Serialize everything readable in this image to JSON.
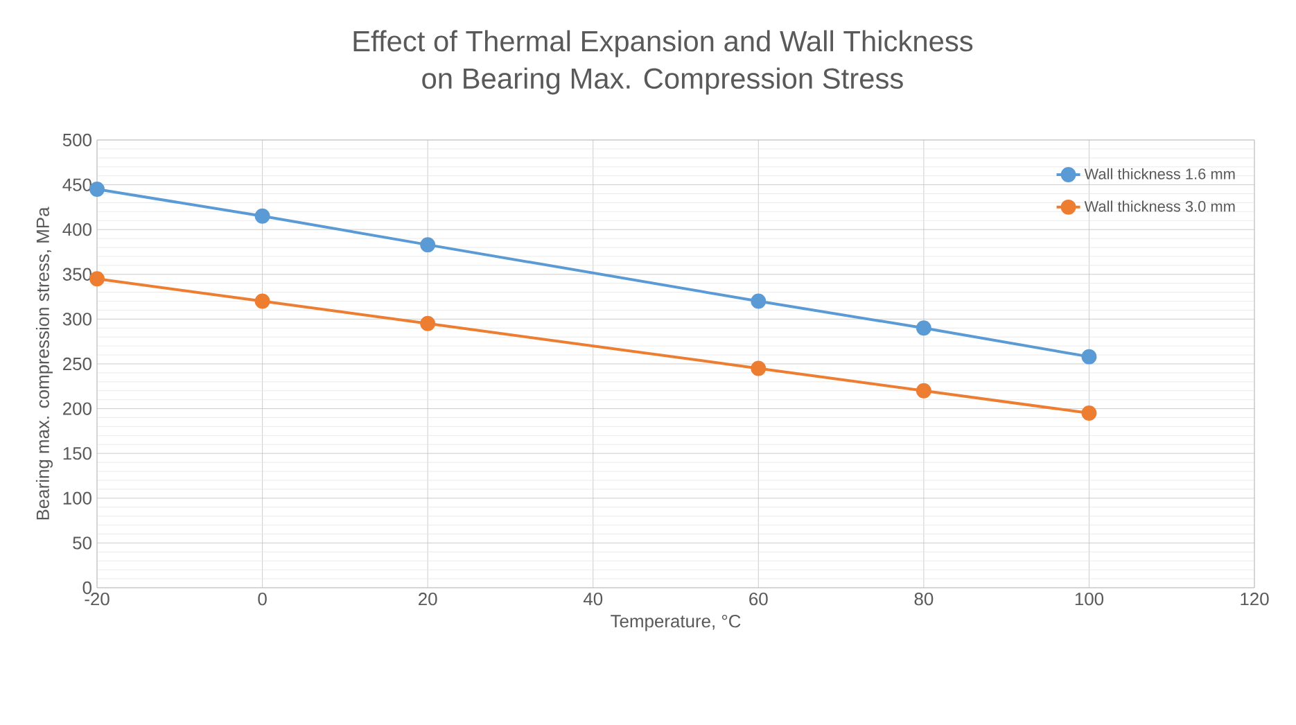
{
  "chart_data": {
    "type": "line",
    "title": "Effect of Thermal Expansion and Wall Thickness\non Bearing Max.  Compression Stress",
    "xlabel": "Temperature, °C",
    "ylabel": "Bearing max.  compression stress, MPa",
    "x": [
      -20,
      0,
      20,
      60,
      80,
      100
    ],
    "series": [
      {
        "name": "Wall thickness 1.6 mm",
        "color": "#5b9bd5",
        "values": [
          445,
          415,
          383,
          320,
          290,
          258
        ]
      },
      {
        "name": "Wall thickness 3.0 mm",
        "color": "#ed7d31",
        "values": [
          345,
          320,
          295,
          245,
          220,
          195
        ]
      }
    ],
    "xlim": [
      -20,
      120
    ],
    "xticks": [
      -20,
      0,
      20,
      40,
      60,
      80,
      100,
      120
    ],
    "ylim": [
      0,
      500
    ],
    "yticks": [
      0,
      50,
      100,
      150,
      200,
      250,
      300,
      350,
      400,
      450,
      500
    ],
    "grid": true,
    "legend": "top right",
    "marker": "circle",
    "line_style": "solid"
  }
}
